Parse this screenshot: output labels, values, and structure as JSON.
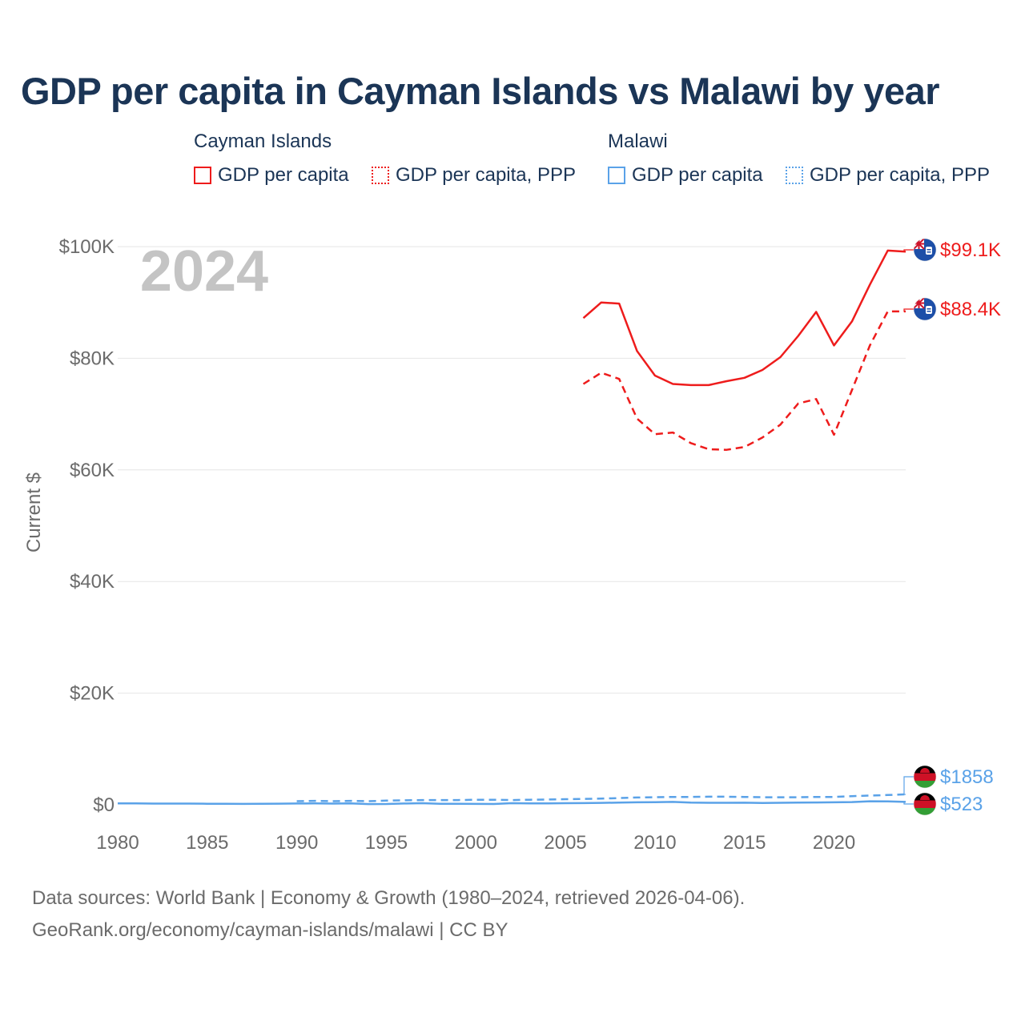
{
  "title": "GDP per capita in Cayman Islands vs Malawi by year",
  "legend": {
    "groups": [
      {
        "country": "Cayman Islands",
        "color": "#ee1c1c",
        "items": [
          {
            "label": "GDP per capita",
            "style": "solid"
          },
          {
            "label": "GDP per capita, PPP",
            "style": "dotted"
          }
        ]
      },
      {
        "country": "Malawi",
        "color": "#5aa2e8",
        "items": [
          {
            "label": "GDP per capita",
            "style": "solid"
          },
          {
            "label": "GDP per capita, PPP",
            "style": "dotted"
          }
        ]
      }
    ]
  },
  "year_watermark": "2024",
  "footer": {
    "line1": "Data sources: World Bank | Economy & Growth (1980–2024, retrieved 2026-04-06).",
    "line2": "GeoRank.org/economy/cayman-islands/malawi | CC BY"
  },
  "chart_data": {
    "type": "line",
    "title": "GDP per capita in Cayman Islands vs Malawi by year",
    "ylabel": "Current $",
    "xlabel": "",
    "xlim": [
      1980,
      2024
    ],
    "ylim": [
      0,
      100000
    ],
    "grid": true,
    "x_ticks": [
      1980,
      1985,
      1990,
      1995,
      2000,
      2005,
      2010,
      2015,
      2020
    ],
    "x_tick_labels": [
      "1980",
      "1985",
      "1990",
      "1995",
      "2000",
      "2005",
      "2010",
      "2015",
      "2020"
    ],
    "y_ticks": [
      0,
      20000,
      40000,
      60000,
      80000,
      100000
    ],
    "y_tick_labels": [
      "$0",
      "$20K",
      "$40K",
      "$60K",
      "$80K",
      "$100K"
    ],
    "series": [
      {
        "name": "Cayman Islands GDP per capita",
        "color": "#ee1c1c",
        "dash": "solid",
        "end_label": "$99.1K",
        "flag": "cayman-islands",
        "x": [
          2006,
          2007,
          2008,
          2009,
          2010,
          2011,
          2012,
          2013,
          2014,
          2015,
          2016,
          2017,
          2018,
          2019,
          2020,
          2021,
          2022,
          2023,
          2024
        ],
        "values": [
          87200,
          90000,
          89800,
          81300,
          76900,
          75400,
          75200,
          75200,
          75900,
          76500,
          77900,
          80200,
          84000,
          88300,
          82300,
          86600,
          93200,
          99300,
          99100
        ]
      },
      {
        "name": "Cayman Islands GDP per capita, PPP",
        "color": "#ee1c1c",
        "dash": "dashed",
        "end_label": "$88.4K",
        "flag": "cayman-islands",
        "x": [
          2006,
          2007,
          2008,
          2009,
          2010,
          2011,
          2012,
          2013,
          2014,
          2015,
          2016,
          2017,
          2018,
          2019,
          2020,
          2021,
          2022,
          2023,
          2024
        ],
        "values": [
          75400,
          77400,
          76300,
          69200,
          66400,
          66700,
          64800,
          63700,
          63600,
          64100,
          65800,
          68100,
          71900,
          72700,
          66300,
          74300,
          82300,
          88400,
          88400
        ]
      },
      {
        "name": "Malawi GDP per capita",
        "color": "#5aa2e8",
        "dash": "solid",
        "end_label": "$523",
        "flag": "malawi",
        "x": [
          1980,
          1981,
          1982,
          1983,
          1984,
          1985,
          1986,
          1987,
          1988,
          1989,
          1990,
          1991,
          1992,
          1993,
          1994,
          1995,
          1996,
          1997,
          1998,
          1999,
          2000,
          2001,
          2002,
          2003,
          2004,
          2005,
          2006,
          2007,
          2008,
          2009,
          2010,
          2011,
          2012,
          2013,
          2014,
          2015,
          2016,
          2017,
          2018,
          2019,
          2020,
          2021,
          2022,
          2023,
          2024
        ],
        "values": [
          250,
          240,
          220,
          220,
          210,
          180,
          170,
          160,
          180,
          200,
          230,
          250,
          210,
          240,
          130,
          150,
          230,
          290,
          190,
          180,
          160,
          150,
          280,
          240,
          260,
          280,
          300,
          340,
          390,
          450,
          480,
          520,
          390,
          360,
          360,
          380,
          320,
          360,
          400,
          420,
          440,
          490,
          630,
          610,
          523
        ]
      },
      {
        "name": "Malawi GDP per capita, PPP",
        "color": "#5aa2e8",
        "dash": "dashed",
        "end_label": "$1858",
        "flag": "malawi",
        "x": [
          1990,
          1991,
          1992,
          1993,
          1994,
          1995,
          1996,
          1997,
          1998,
          1999,
          2000,
          2001,
          2002,
          2003,
          2004,
          2005,
          2006,
          2007,
          2008,
          2009,
          2010,
          2011,
          2012,
          2013,
          2014,
          2015,
          2016,
          2017,
          2018,
          2019,
          2020,
          2021,
          2022,
          2023,
          2024
        ],
        "values": [
          650,
          700,
          650,
          700,
          650,
          750,
          800,
          850,
          850,
          850,
          900,
          900,
          850,
          900,
          950,
          1000,
          1050,
          1100,
          1200,
          1300,
          1350,
          1400,
          1400,
          1450,
          1450,
          1400,
          1350,
          1350,
          1350,
          1400,
          1400,
          1550,
          1650,
          1750,
          1858
        ]
      }
    ]
  }
}
